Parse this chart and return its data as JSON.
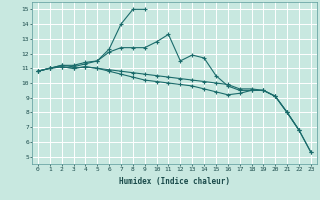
{
  "xlabel": "Humidex (Indice chaleur)",
  "xlim": [
    -0.5,
    23.5
  ],
  "ylim": [
    4.5,
    15.5
  ],
  "xticks": [
    0,
    1,
    2,
    3,
    4,
    5,
    6,
    7,
    8,
    9,
    10,
    11,
    12,
    13,
    14,
    15,
    16,
    17,
    18,
    19,
    20,
    21,
    22,
    23
  ],
  "yticks": [
    5,
    6,
    7,
    8,
    9,
    10,
    11,
    12,
    13,
    14,
    15
  ],
  "bg_color": "#c8e8e0",
  "grid_color": "#ffffff",
  "line_color": "#1a6b6b",
  "lines": [
    {
      "x": [
        0,
        1,
        2,
        3,
        4,
        5,
        6,
        7,
        8,
        9
      ],
      "y": [
        10.8,
        11.0,
        11.2,
        11.1,
        11.3,
        11.5,
        12.3,
        14.0,
        15.0,
        15.0
      ]
    },
    {
      "x": [
        0,
        1,
        2,
        3,
        4,
        5,
        6,
        7,
        8,
        9,
        10,
        11,
        12,
        13,
        14,
        15,
        16,
        17,
        18,
        19,
        20,
        21,
        22
      ],
      "y": [
        10.8,
        11.0,
        11.2,
        11.2,
        11.4,
        11.5,
        12.1,
        12.4,
        12.4,
        12.4,
        12.8,
        13.3,
        11.5,
        11.9,
        11.7,
        10.5,
        9.8,
        9.5,
        9.5,
        9.5,
        9.1,
        8.0,
        6.8
      ]
    },
    {
      "x": [
        0,
        1,
        2,
        3,
        4,
        5,
        6,
        7,
        8,
        9,
        10,
        11,
        12,
        13,
        14,
        15,
        16,
        17,
        18,
        19,
        20,
        21,
        22,
        23
      ],
      "y": [
        10.8,
        11.0,
        11.1,
        11.0,
        11.1,
        11.0,
        10.9,
        10.8,
        10.7,
        10.6,
        10.5,
        10.4,
        10.3,
        10.2,
        10.1,
        10.0,
        9.9,
        9.6,
        9.6,
        9.5,
        9.1,
        8.0,
        6.8,
        5.3
      ]
    },
    {
      "x": [
        0,
        1,
        2,
        3,
        4,
        5,
        6,
        7,
        8,
        9,
        10,
        11,
        12,
        13,
        14,
        15,
        16,
        17,
        18,
        19,
        20,
        21,
        22,
        23
      ],
      "y": [
        10.8,
        11.0,
        11.1,
        11.0,
        11.1,
        11.0,
        10.8,
        10.6,
        10.4,
        10.2,
        10.1,
        10.0,
        9.9,
        9.8,
        9.6,
        9.4,
        9.2,
        9.3,
        9.5,
        9.5,
        9.1,
        8.0,
        6.8,
        5.3
      ]
    }
  ]
}
